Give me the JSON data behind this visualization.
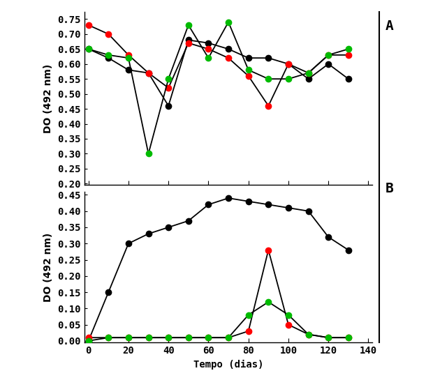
{
  "title": "",
  "xlabel": "Tempo (dias)",
  "ylabel_A": "DO (492 nm)",
  "ylabel_B": "DO (492 nm)",
  "label_A": "A",
  "label_B": "B",
  "x_ticks": [
    0,
    20,
    40,
    60,
    80,
    100,
    120,
    140
  ],
  "x_lim": [
    -2,
    142
  ],
  "subplot_A": {
    "y_lim": [
      0.195,
      0.775
    ],
    "y_ticks": [
      0.2,
      0.25,
      0.3,
      0.35,
      0.4,
      0.45,
      0.5,
      0.55,
      0.6,
      0.65,
      0.7,
      0.75
    ],
    "black_x": [
      0,
      10,
      20,
      30,
      40,
      50,
      60,
      70,
      80,
      90,
      100,
      110,
      120,
      130
    ],
    "black_y": [
      0.65,
      0.62,
      0.58,
      0.57,
      0.46,
      0.68,
      0.67,
      0.65,
      0.62,
      0.62,
      0.6,
      0.55,
      0.6,
      0.55
    ],
    "red_x": [
      0,
      10,
      20,
      30,
      40,
      50,
      60,
      70,
      80,
      90,
      100,
      110,
      120,
      130
    ],
    "red_y": [
      0.73,
      0.7,
      0.63,
      0.57,
      0.52,
      0.67,
      0.65,
      0.62,
      0.56,
      0.46,
      0.6,
      0.57,
      0.63,
      0.63
    ],
    "green_x": [
      0,
      10,
      20,
      30,
      40,
      50,
      60,
      70,
      80,
      90,
      100,
      110,
      120,
      130
    ],
    "green_y": [
      0.65,
      0.63,
      0.62,
      0.3,
      0.55,
      0.73,
      0.62,
      0.74,
      0.58,
      0.55,
      0.55,
      0.57,
      0.63,
      0.65
    ]
  },
  "subplot_B": {
    "y_lim": [
      -0.005,
      0.46
    ],
    "y_ticks": [
      0.0,
      0.05,
      0.1,
      0.15,
      0.2,
      0.25,
      0.3,
      0.35,
      0.4,
      0.45
    ],
    "black_x": [
      0,
      10,
      20,
      30,
      40,
      50,
      60,
      70,
      80,
      90,
      100,
      110,
      120,
      130
    ],
    "black_y": [
      0.0,
      0.15,
      0.3,
      0.33,
      0.35,
      0.37,
      0.42,
      0.44,
      0.43,
      0.42,
      0.41,
      0.4,
      0.32,
      0.28
    ],
    "red_x": [
      0,
      10,
      20,
      30,
      40,
      50,
      60,
      70,
      80,
      90,
      100,
      110,
      120,
      130
    ],
    "red_y": [
      0.01,
      0.01,
      0.01,
      0.01,
      0.01,
      0.01,
      0.01,
      0.01,
      0.03,
      0.28,
      0.05,
      0.02,
      0.01,
      0.01
    ],
    "green_x": [
      0,
      10,
      20,
      30,
      40,
      50,
      60,
      70,
      80,
      90,
      100,
      110,
      120,
      130
    ],
    "green_y": [
      0.0,
      0.01,
      0.01,
      0.01,
      0.01,
      0.01,
      0.01,
      0.01,
      0.08,
      0.12,
      0.08,
      0.02,
      0.01,
      0.01
    ]
  },
  "line_color_black": "#000000",
  "line_color_red": "#ff0000",
  "line_color_green": "#00bb00",
  "marker_size": 6,
  "line_width": 1.3,
  "font_size_tick": 10,
  "font_size_label": 10,
  "bg_color": "#ffffff",
  "tick_font_weight": "black",
  "ab_fontsize": 14
}
